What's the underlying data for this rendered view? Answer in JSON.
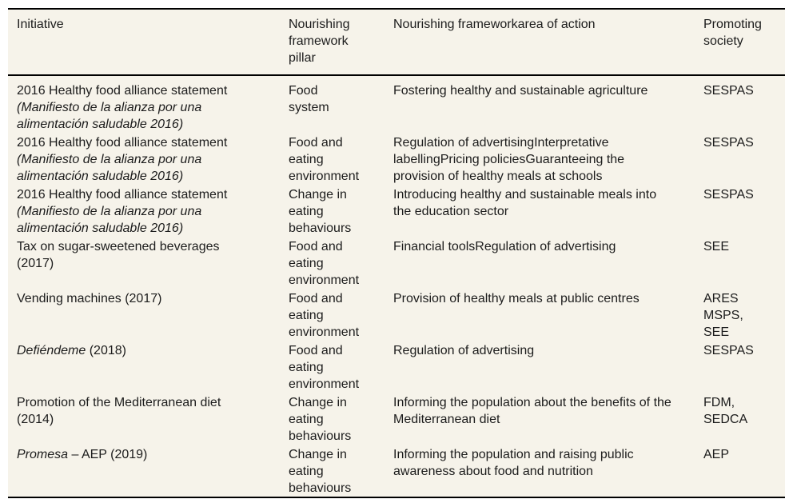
{
  "colors": {
    "table_background": "#f6f3ea",
    "border": "#000000",
    "text": "#1c1c1c"
  },
  "table": {
    "header": {
      "initiative": "Initiative",
      "pillar": "Nourishing framework pillar",
      "area": "Nourishing frameworkarea of action",
      "society": "Promoting society"
    },
    "rows": [
      {
        "name_regular": "2016 Healthy food alliance statement",
        "name_italic": "(Manifiesto de la alianza por una alimentación saludable 2016)",
        "name_after": "",
        "pillar": "Food system",
        "area": "Fostering healthy and sustainable agriculture",
        "society": "SESPAS"
      },
      {
        "name_regular": "2016 Healthy food alliance statement",
        "name_italic": "(Manifiesto de la alianza por una alimentación saludable 2016)",
        "name_after": "",
        "pillar": "Food and eating environment",
        "area": "Regulation of advertisingInterpretative labellingPricing policiesGuaranteeing the provision of healthy meals at schools",
        "society": "SESPAS"
      },
      {
        "name_regular": "2016 Healthy food alliance statement",
        "name_italic": "(Manifiesto de la alianza por una alimentación saludable 2016)",
        "name_after": "",
        "pillar": "Change in eating behaviours",
        "area": "Introducing healthy and sustainable meals into the education sector",
        "society": "SESPAS"
      },
      {
        "name_regular": "Tax on sugar-sweetened beverages (2017)",
        "name_italic": "",
        "name_after": "",
        "pillar": "Food and eating environment",
        "area": "Financial toolsRegulation of advertising",
        "society": "SEE"
      },
      {
        "name_regular": "Vending machines (2017)",
        "name_italic": "",
        "name_after": "",
        "pillar": "Food and eating environment",
        "area": "Provision of healthy meals at public centres",
        "society": "ARES MSPS, SEE"
      },
      {
        "name_regular": "",
        "name_italic": "Defiéndeme",
        "name_after": " (2018)",
        "pillar": "Food and eating environment",
        "area": "Regulation of advertising",
        "society": "SESPAS"
      },
      {
        "name_regular": "Promotion of the Mediterranean diet (2014)",
        "name_italic": "",
        "name_after": "",
        "pillar": "Change in eating behaviours",
        "area": "Informing the population about the benefits of the Mediterranean diet",
        "society": "FDM, SEDCA"
      },
      {
        "name_regular": "",
        "name_italic": "Promesa",
        "name_after": " – AEP (2019)",
        "pillar": "Change in eating behaviours",
        "area": "Informing the population and raising public awareness about food and nutrition",
        "society": "AEP"
      }
    ]
  }
}
